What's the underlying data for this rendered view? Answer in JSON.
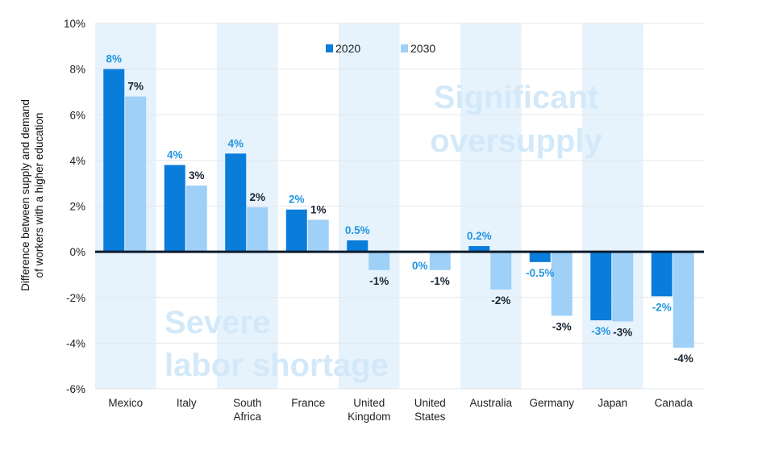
{
  "chart_data": {
    "type": "bar",
    "ylabel_lines": [
      "Difference between supply and demand",
      "of workers with a higher education"
    ],
    "ylim": [
      -6,
      10
    ],
    "yticks": [
      10,
      8,
      6,
      4,
      2,
      0,
      -2,
      -4,
      -6
    ],
    "ytick_labels": [
      "10%",
      "8%",
      "6%",
      "4%",
      "2%",
      "0%",
      "-2%",
      "-4%",
      "-6%"
    ],
    "categories": [
      [
        "Mexico"
      ],
      [
        "Italy"
      ],
      [
        "South",
        "Africa"
      ],
      [
        "France"
      ],
      [
        "United",
        "Kingdom"
      ],
      [
        "United",
        "States"
      ],
      [
        "Australia"
      ],
      [
        "Germany"
      ],
      [
        "Japan"
      ],
      [
        "Canada"
      ]
    ],
    "shaded_categories": [
      0,
      2,
      4,
      6,
      8
    ],
    "legend": {
      "position": "top-center"
    },
    "series": [
      {
        "name": "2020",
        "color": "#0a7ddb",
        "label_color": "#2196e0",
        "values": [
          8.0,
          3.8,
          4.3,
          1.85,
          0.5,
          0,
          0.25,
          -0.45,
          -3.0,
          -1.95
        ],
        "labels": [
          "8%",
          "4%",
          "4%",
          "2%",
          "0.5%",
          "0%",
          "0.2%",
          "-0.5%",
          "-3%",
          "-2%"
        ]
      },
      {
        "name": "2030",
        "color": "#9fd0f7",
        "label_color": "#1a2433",
        "values": [
          6.8,
          2.9,
          1.95,
          1.4,
          -0.8,
          -0.8,
          -1.65,
          -2.8,
          -3.05,
          -4.2
        ],
        "labels": [
          "7%",
          "3%",
          "2%",
          "1%",
          "-1%",
          "-1%",
          "-2%",
          "-3%",
          "-3%",
          "-4%"
        ]
      }
    ],
    "annotations": {
      "top_right": [
        "Significant",
        "oversupply"
      ],
      "bottom_left": [
        "Severe",
        "labor shortage"
      ]
    },
    "grid": true
  }
}
